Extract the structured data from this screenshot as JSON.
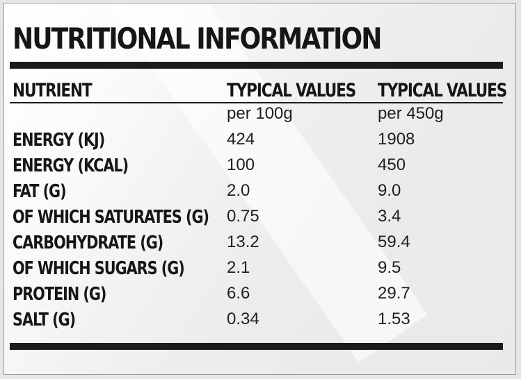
{
  "title": "NUTRITIONAL INFORMATION",
  "headers": {
    "nutrient": "NUTRIENT",
    "col1": "TYPICAL VALUES",
    "col2": "TYPICAL VALUES"
  },
  "units": {
    "col1": "per 100g",
    "col2": "per 450g"
  },
  "rows": [
    {
      "label": "ENERGY (KJ)",
      "per100": "424",
      "per450": "1908"
    },
    {
      "label": "ENERGY (KCAL)",
      "per100": "100",
      "per450": "450"
    },
    {
      "label": "FAT (G)",
      "per100": "2.0",
      "per450": "9.0"
    },
    {
      "label": "OF WHICH SATURATES (G)",
      "per100": "0.75",
      "per450": "3.4"
    },
    {
      "label": "CARBOHYDRATE (G)",
      "per100": "13.2",
      "per450": "59.4"
    },
    {
      "label": "OF WHICH SUGARS (G)",
      "per100": "2.1",
      "per450": "9.5"
    },
    {
      "label": "PROTEIN (G)",
      "per100": "6.6",
      "per450": "29.7"
    },
    {
      "label": "SALT (G)",
      "per100": "0.34",
      "per450": "1.53"
    }
  ]
}
